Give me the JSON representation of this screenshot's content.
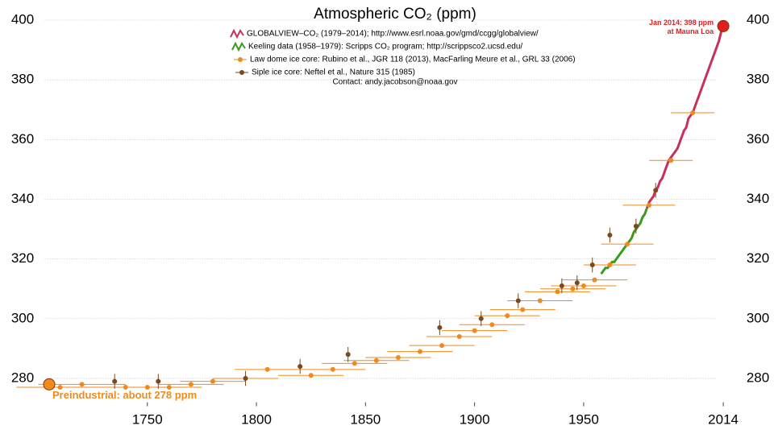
{
  "chart_data": {
    "type": "line",
    "title": "Atmospheric CO₂ (ppm)",
    "contact": "Contact: andy.jacobson@noaa.gov",
    "xlim": [
      1703,
      2016
    ],
    "ylim": [
      272,
      402
    ],
    "xticks": [
      1750,
      1800,
      1850,
      1900,
      1950,
      2014
    ],
    "yticks": [
      280,
      300,
      320,
      340,
      360,
      380,
      400
    ],
    "grid": true,
    "series": [
      {
        "name": "GLOBALVIEW–CO₂ (1979–2014); http://www.esrl.noaa.gov/gmd/ccgg/globalview/",
        "type": "line",
        "color": "#c8305c",
        "x": [
          1979,
          1980,
          1981,
          1982,
          1983,
          1984,
          1985,
          1986,
          1987,
          1988,
          1989,
          1990,
          1991,
          1992,
          1993,
          1994,
          1995,
          1996,
          1997,
          1998,
          1999,
          2000,
          2001,
          2002,
          2003,
          2004,
          2005,
          2006,
          2007,
          2008,
          2009,
          2010,
          2011,
          2012,
          2013,
          2014
        ],
        "values": [
          337,
          339,
          340,
          341,
          343,
          344,
          346,
          347,
          349,
          351,
          353,
          354,
          355,
          356,
          357,
          359,
          361,
          363,
          364,
          367,
          368,
          369,
          371,
          373,
          375,
          377,
          379,
          381,
          383,
          385,
          387,
          389,
          391,
          393,
          396,
          398
        ]
      },
      {
        "name": "Keeling data (1958–1979): Scripps CO₂ program; http://scrippsco2.ucsd.edu/",
        "type": "line",
        "color": "#3c9a1e",
        "x": [
          1958,
          1959,
          1960,
          1961,
          1962,
          1963,
          1964,
          1965,
          1966,
          1967,
          1968,
          1969,
          1970,
          1971,
          1972,
          1973,
          1974,
          1975,
          1976,
          1977,
          1978,
          1979
        ],
        "values": [
          315,
          316,
          317,
          317,
          318,
          319,
          319,
          320,
          321,
          322,
          323,
          324,
          325,
          326,
          327,
          329,
          330,
          331,
          332,
          334,
          335,
          337
        ]
      },
      {
        "name": "Law dome ice core:  Rubino et al., JGR 118 (2013), MacFarling Meure et al., GRL 33 (2006)",
        "type": "scatter",
        "color": "#f08a1c",
        "x": [
          1710,
          1720,
          1740,
          1750,
          1760,
          1770,
          1780,
          1795,
          1805,
          1825,
          1835,
          1845,
          1855,
          1865,
          1875,
          1885,
          1893,
          1900,
          1908,
          1915,
          1922,
          1930,
          1938,
          1945,
          1950,
          1955,
          1962,
          1970,
          1980,
          1990,
          2000
        ],
        "values": [
          277,
          278,
          277,
          277,
          277,
          278,
          279,
          280,
          283,
          281,
          283,
          285,
          286,
          287,
          289,
          291,
          294,
          296,
          298,
          301,
          303,
          306,
          309,
          310,
          311,
          313,
          318,
          325,
          338,
          353,
          369
        ],
        "xerr": [
          20,
          20,
          15,
          15,
          15,
          15,
          15,
          15,
          15,
          15,
          15,
          15,
          15,
          15,
          15,
          15,
          15,
          15,
          15,
          15,
          15,
          15,
          15,
          15,
          15,
          15,
          12,
          12,
          12,
          10,
          10
        ]
      },
      {
        "name": "Siple ice core:  Neftel et al., Nature 315 (1985)",
        "type": "scatter",
        "color": "#7a4a1e",
        "x": [
          1735,
          1755,
          1795,
          1820,
          1842,
          1884,
          1903,
          1920,
          1940,
          1947,
          1954,
          1962,
          1974,
          1983
        ],
        "values": [
          279,
          279,
          280,
          284,
          288,
          297,
          300,
          306,
          311,
          312,
          318,
          328,
          331,
          343
        ],
        "yerr": [
          2.5,
          2.5,
          2.5,
          2.5,
          2.5,
          2.5,
          2.5,
          2.5,
          2.5,
          2.5,
          2.5,
          2.5,
          2.5,
          2.5
        ]
      }
    ],
    "annotations": [
      {
        "lines": [
          "Jan 2014: 398 ppm",
          "at Mauna Loa"
        ],
        "x": 2014,
        "y": 398,
        "color": "#e02020"
      },
      {
        "lines": [
          "Preindustrial: about 278 ppm"
        ],
        "x": 1705,
        "y": 278,
        "color": "#f08a1c"
      }
    ]
  }
}
